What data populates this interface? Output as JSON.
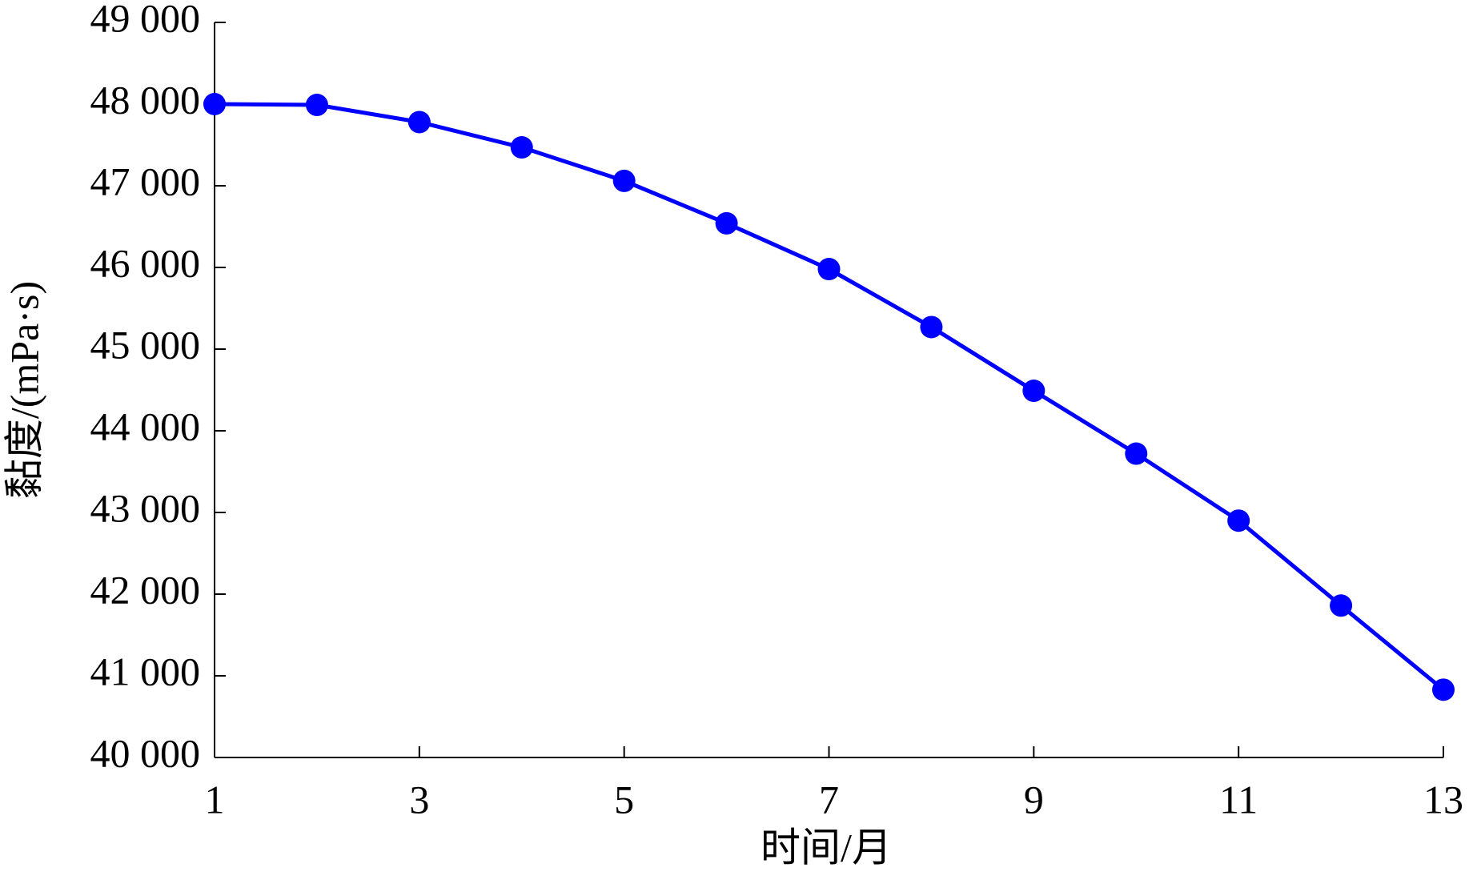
{
  "chart_data": {
    "type": "line",
    "x_label": "时间/月",
    "y_label": "黏度/(mPa·s)",
    "x": [
      1,
      2,
      3,
      4,
      5,
      6,
      7,
      8,
      9,
      10,
      11,
      12,
      13
    ],
    "series": [
      {
        "color": "#0000ff",
        "values": [
          48000,
          47990,
          47780,
          47470,
          47060,
          46540,
          45980,
          45270,
          44490,
          43720,
          42900,
          41860,
          40830
        ]
      }
    ],
    "xlim": [
      1,
      13
    ],
    "xticks": [
      1,
      3,
      5,
      7,
      9,
      11,
      13
    ],
    "ylim": [
      40000,
      49000
    ],
    "yticks": [
      {
        "value": 40000,
        "label": "40 000"
      },
      {
        "value": 41000,
        "label": "41 000"
      },
      {
        "value": 42000,
        "label": "42 000"
      },
      {
        "value": 43000,
        "label": "43 000"
      },
      {
        "value": 44000,
        "label": "44 000"
      },
      {
        "value": 45000,
        "label": "45 000"
      },
      {
        "value": 46000,
        "label": "46 000"
      },
      {
        "value": 47000,
        "label": "47 000"
      },
      {
        "value": 48000,
        "label": "48 000"
      },
      {
        "value": 49000,
        "label": "49 000"
      }
    ],
    "grid": false
  }
}
